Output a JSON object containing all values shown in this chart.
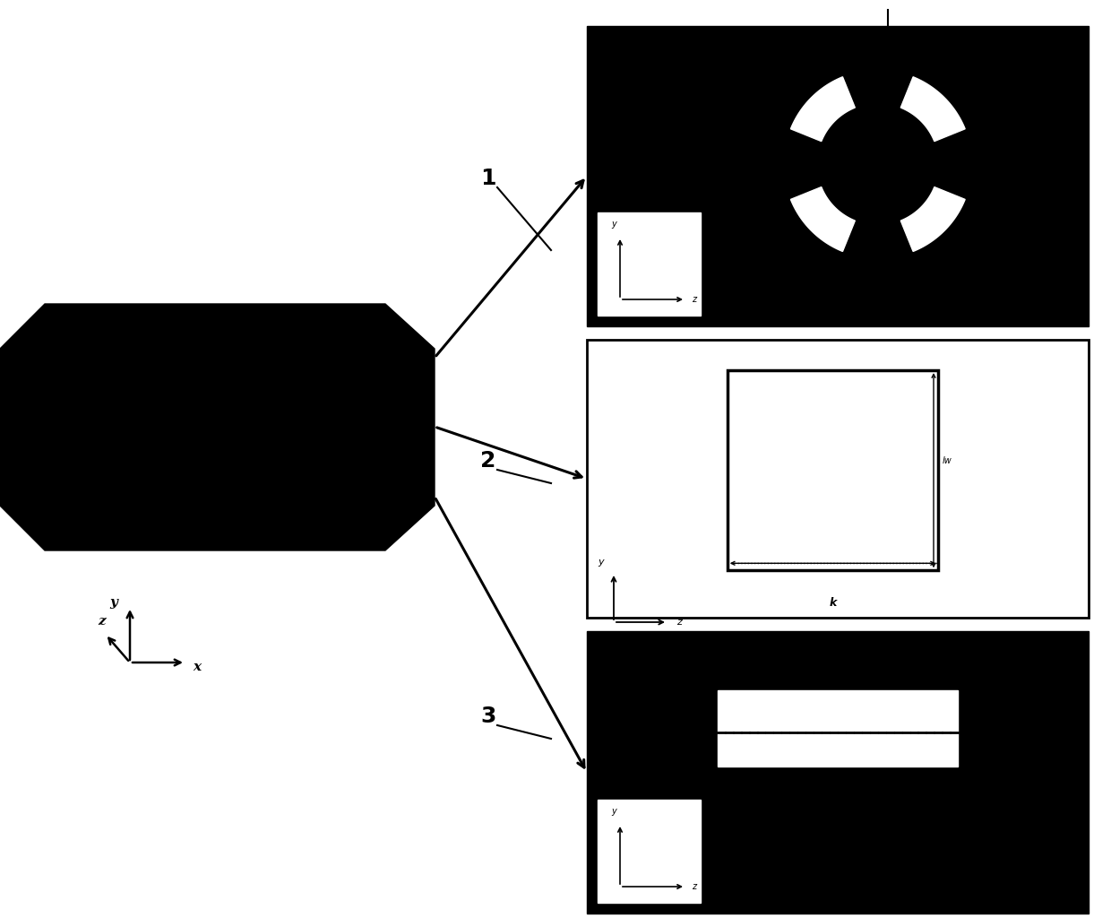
{
  "bg_color": "#ffffff",
  "black": "#000000",
  "white": "#ffffff",
  "fig_width": 12.4,
  "fig_height": 10.24,
  "panel1_label": "1",
  "panel2_label": "2",
  "panel3_label": "3"
}
